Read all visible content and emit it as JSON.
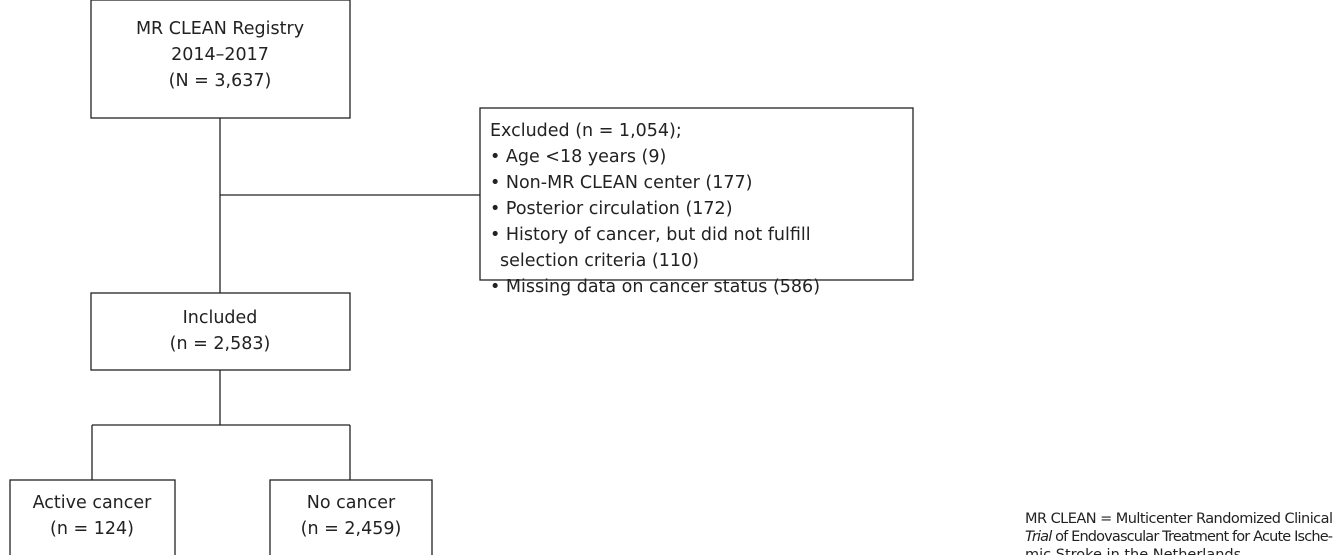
{
  "registry": {
    "lines": [
      "MR CLEAN Registry",
      "2014–2017",
      "(N = 3,637)"
    ]
  },
  "excluded": {
    "lines": [
      "Excluded (n = 1,054);",
      "• Age <18 years (9)",
      "• Non-MR CLEAN center (177)",
      "• Posterior circulation (172)",
      "• History of cancer, but did not fulfill",
      "selection criteria (110)",
      "• Missing data on cancer status (586)"
    ]
  },
  "included": {
    "lines": [
      "Included",
      "(n = 2,583)"
    ]
  },
  "active_cancer": {
    "lines": [
      "Active cancer",
      "(n = 124)"
    ]
  },
  "no_cancer": {
    "lines": [
      "No cancer",
      "(n = 2,459)"
    ]
  },
  "footnote": {
    "line1": "MR CLEAN = Multicenter Randomized Clinical",
    "line2_italic": "Trial",
    "line2_rest": " of Endovascular Treatment for Acute Ische-",
    "line3": "mic Stroke in the Netherlands"
  }
}
